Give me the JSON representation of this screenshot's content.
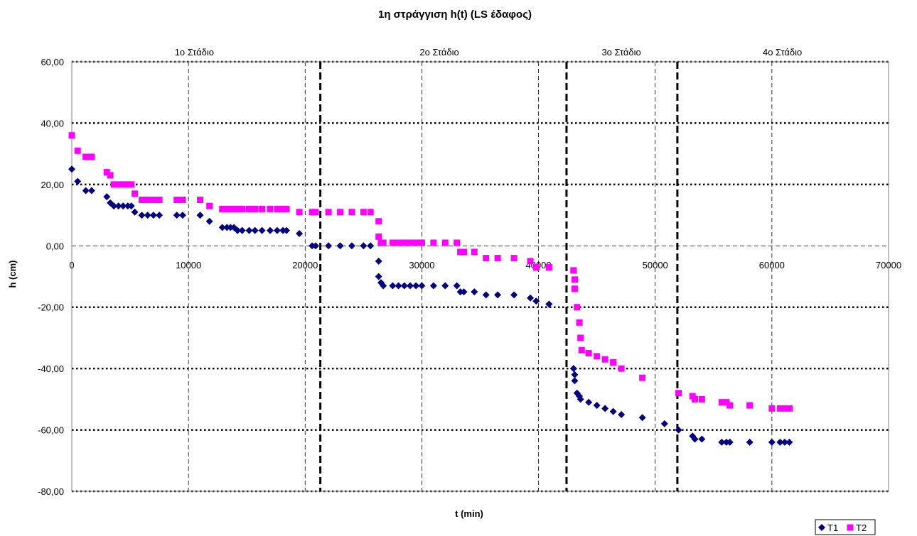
{
  "chart_data": {
    "type": "scatter",
    "title": "1η στράγγιση h(t) (LS έδαφος)",
    "xlabel": "t (min)",
    "ylabel": "h (cm)",
    "xlim": [
      0,
      70000
    ],
    "ylim": [
      -80,
      60
    ],
    "x_ticks": [
      0,
      10000,
      20000,
      30000,
      40000,
      50000,
      60000,
      70000
    ],
    "x_tick_labels": [
      "0",
      "10000",
      "20000",
      "30000",
      "40000",
      "50000",
      "60000",
      "70000"
    ],
    "y_ticks": [
      60,
      40,
      20,
      0,
      -20,
      -40,
      -60,
      -80
    ],
    "y_tick_labels": [
      "60,00",
      "40,00",
      "20,00",
      "0,00",
      "-20,00",
      "-40,00",
      "-60,00",
      "-80,00"
    ],
    "grid": true,
    "legend_position": "bottom-right",
    "stage_boundaries": [
      21300,
      42400,
      51900
    ],
    "stages": [
      {
        "label": "1ο Στάδιο",
        "x": 10500
      },
      {
        "label": "2ο Στάδιο",
        "x": 31500
      },
      {
        "label": "3ο Στάδιο",
        "x": 47100
      },
      {
        "label": "4ο Στάδιο",
        "x": 60900
      }
    ],
    "series": [
      {
        "name": "T1",
        "color": "#000080",
        "marker": "diamond",
        "points": [
          [
            0,
            25
          ],
          [
            500,
            21
          ],
          [
            1200,
            18
          ],
          [
            1700,
            18
          ],
          [
            3000,
            16
          ],
          [
            3300,
            14
          ],
          [
            3600,
            13
          ],
          [
            4000,
            13
          ],
          [
            4400,
            13
          ],
          [
            4800,
            13
          ],
          [
            5100,
            13
          ],
          [
            5400,
            11
          ],
          [
            6000,
            10
          ],
          [
            6500,
            10
          ],
          [
            7000,
            10
          ],
          [
            7500,
            10
          ],
          [
            9000,
            10
          ],
          [
            9500,
            10
          ],
          [
            11000,
            10
          ],
          [
            11800,
            8
          ],
          [
            12900,
            6
          ],
          [
            13300,
            6
          ],
          [
            13600,
            6
          ],
          [
            13900,
            6
          ],
          [
            14200,
            5
          ],
          [
            14600,
            5
          ],
          [
            15200,
            5
          ],
          [
            15700,
            5
          ],
          [
            16300,
            5
          ],
          [
            17000,
            5
          ],
          [
            17600,
            5
          ],
          [
            18100,
            5
          ],
          [
            18400,
            5
          ],
          [
            19500,
            4
          ],
          [
            20600,
            0
          ],
          [
            20900,
            0
          ],
          [
            22000,
            0
          ],
          [
            23000,
            0
          ],
          [
            24000,
            0
          ],
          [
            25000,
            0
          ],
          [
            25600,
            0
          ],
          [
            26300,
            -5
          ],
          [
            26300,
            -10
          ],
          [
            26500,
            -12
          ],
          [
            26700,
            -13
          ],
          [
            27500,
            -13
          ],
          [
            28000,
            -13
          ],
          [
            28500,
            -13
          ],
          [
            29000,
            -13
          ],
          [
            29500,
            -13
          ],
          [
            30000,
            -13
          ],
          [
            31000,
            -13
          ],
          [
            32000,
            -13
          ],
          [
            33000,
            -13
          ],
          [
            33300,
            -15
          ],
          [
            33600,
            -15
          ],
          [
            34500,
            -15
          ],
          [
            35500,
            -16
          ],
          [
            36500,
            -16
          ],
          [
            37900,
            -16
          ],
          [
            39300,
            -17
          ],
          [
            39800,
            -18
          ],
          [
            40900,
            -19
          ],
          [
            43000,
            -40
          ],
          [
            43100,
            -42
          ],
          [
            43100,
            -44
          ],
          [
            43300,
            -48
          ],
          [
            43500,
            -49
          ],
          [
            43600,
            -50
          ],
          [
            44300,
            -51
          ],
          [
            45000,
            -52
          ],
          [
            45700,
            -53
          ],
          [
            46400,
            -54
          ],
          [
            47100,
            -55
          ],
          [
            48900,
            -56
          ],
          [
            50800,
            -58
          ],
          [
            52000,
            -60
          ],
          [
            53200,
            -62
          ],
          [
            53400,
            -63
          ],
          [
            54000,
            -63
          ],
          [
            55700,
            -64
          ],
          [
            56100,
            -64
          ],
          [
            56400,
            -64
          ],
          [
            58100,
            -64
          ],
          [
            60000,
            -64
          ],
          [
            60700,
            -64
          ],
          [
            61100,
            -64
          ],
          [
            61500,
            -64
          ]
        ]
      },
      {
        "name": "T2",
        "color": "#FF00FF",
        "marker": "square",
        "points": [
          [
            0,
            36
          ],
          [
            500,
            31
          ],
          [
            1200,
            29
          ],
          [
            1700,
            29
          ],
          [
            3000,
            24
          ],
          [
            3300,
            23
          ],
          [
            3600,
            20
          ],
          [
            4000,
            20
          ],
          [
            4400,
            20
          ],
          [
            4800,
            20
          ],
          [
            5100,
            20
          ],
          [
            5400,
            17
          ],
          [
            6000,
            15
          ],
          [
            6500,
            15
          ],
          [
            7000,
            15
          ],
          [
            7500,
            15
          ],
          [
            9000,
            15
          ],
          [
            9500,
            15
          ],
          [
            11000,
            15
          ],
          [
            11800,
            13
          ],
          [
            12900,
            12
          ],
          [
            13300,
            12
          ],
          [
            13600,
            12
          ],
          [
            13900,
            12
          ],
          [
            14200,
            12
          ],
          [
            14600,
            12
          ],
          [
            15200,
            12
          ],
          [
            15700,
            12
          ],
          [
            16300,
            12
          ],
          [
            17000,
            12
          ],
          [
            17600,
            12
          ],
          [
            18100,
            12
          ],
          [
            18400,
            12
          ],
          [
            19500,
            11
          ],
          [
            20600,
            11
          ],
          [
            20900,
            11
          ],
          [
            22000,
            11
          ],
          [
            23000,
            11
          ],
          [
            24000,
            11
          ],
          [
            25000,
            11
          ],
          [
            25600,
            11
          ],
          [
            26300,
            8
          ],
          [
            26300,
            3
          ],
          [
            26500,
            1
          ],
          [
            26700,
            1
          ],
          [
            27500,
            1
          ],
          [
            28000,
            1
          ],
          [
            28500,
            1
          ],
          [
            29000,
            1
          ],
          [
            29500,
            1
          ],
          [
            30000,
            1
          ],
          [
            31000,
            1
          ],
          [
            32000,
            1
          ],
          [
            33000,
            1
          ],
          [
            33300,
            -2
          ],
          [
            33600,
            -2
          ],
          [
            34500,
            -2
          ],
          [
            35500,
            -4
          ],
          [
            36500,
            -4
          ],
          [
            37900,
            -4
          ],
          [
            39300,
            -5
          ],
          [
            39800,
            -7
          ],
          [
            40900,
            -7
          ],
          [
            43000,
            -8
          ],
          [
            43100,
            -11
          ],
          [
            43100,
            -14
          ],
          [
            43300,
            -20
          ],
          [
            43500,
            -25
          ],
          [
            43600,
            -30
          ],
          [
            43700,
            -34
          ],
          [
            44300,
            -35
          ],
          [
            45000,
            -36
          ],
          [
            45700,
            -37
          ],
          [
            46400,
            -38
          ],
          [
            47100,
            -40
          ],
          [
            48900,
            -43
          ],
          [
            52000,
            -48
          ],
          [
            53200,
            -49
          ],
          [
            53400,
            -50
          ],
          [
            54000,
            -50
          ],
          [
            55700,
            -51
          ],
          [
            56100,
            -51
          ],
          [
            56400,
            -52
          ],
          [
            58100,
            -52
          ],
          [
            60000,
            -53
          ],
          [
            60700,
            -53
          ],
          [
            61100,
            -53
          ],
          [
            61500,
            -53
          ]
        ]
      }
    ]
  }
}
